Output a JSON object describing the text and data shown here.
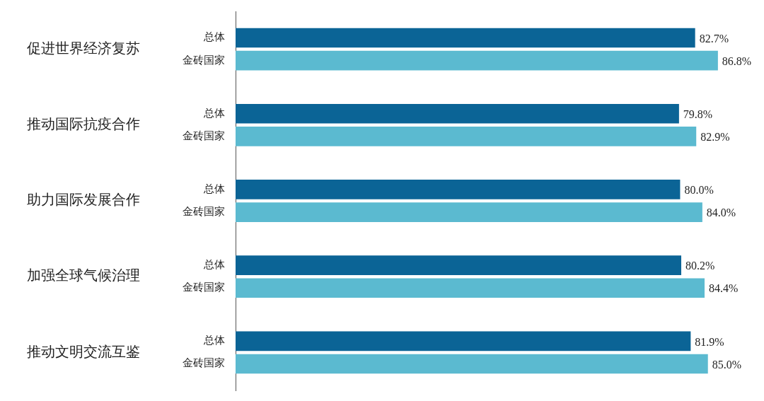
{
  "chart_data": {
    "type": "bar",
    "orientation": "horizontal",
    "categories": [
      "促进世界经济复苏",
      "推动国际抗疫合作",
      "助力国际发展合作",
      "加强全球气候治理",
      "推动文明交流互鉴"
    ],
    "series": [
      {
        "name": "总体",
        "color": "#0b6496",
        "values": [
          82.7,
          79.8,
          80.0,
          80.2,
          81.9
        ],
        "value_labels": [
          "82.7%",
          "79.8%",
          "80.0%",
          "80.2%",
          "81.9%"
        ]
      },
      {
        "name": "金砖国家",
        "color": "#5bbad0",
        "values": [
          86.8,
          82.9,
          84.0,
          84.4,
          85.0
        ],
        "value_labels": [
          "86.8%",
          "82.9%",
          "84.0%",
          "84.4%",
          "85.0%"
        ]
      }
    ],
    "tick_labels": "y",
    "grid": false,
    "legend": false
  }
}
